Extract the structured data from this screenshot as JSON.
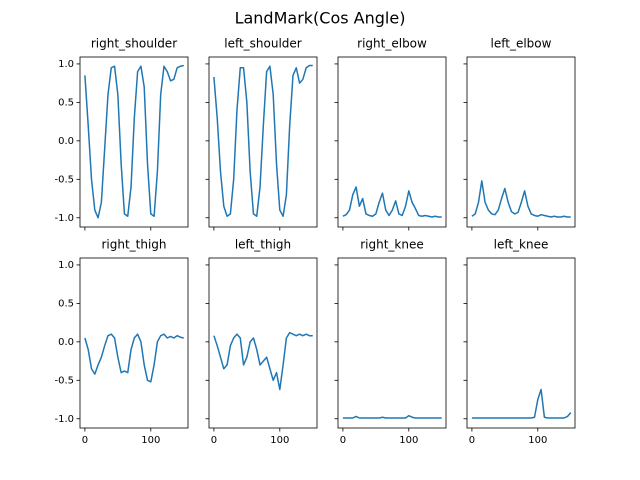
{
  "title": "LandMark(Cos Angle)",
  "chart_data": [
    {
      "type": "line",
      "title": "right_shoulder",
      "color": "#1f77b4",
      "xlim": [
        -7.45,
        156.45
      ],
      "ylim": [
        -1.12,
        1.09
      ],
      "yticks": [
        {
          "value": -1,
          "label": "-1.0"
        },
        {
          "value": -0.5,
          "label": "-0.5"
        },
        {
          "value": 0,
          "label": "0.0"
        },
        {
          "value": 0.5,
          "label": "0.5"
        },
        {
          "value": 1,
          "label": "1.0"
        }
      ],
      "x": [
        0,
        5,
        10,
        15,
        20,
        25,
        30,
        35,
        40,
        45,
        50,
        55,
        60,
        65,
        70,
        75,
        80,
        85,
        90,
        95,
        100,
        105,
        110,
        115,
        120,
        125,
        130,
        135,
        140,
        145,
        150
      ],
      "values": [
        0.85,
        0.2,
        -0.5,
        -0.9,
        -1.0,
        -0.8,
        -0.1,
        0.6,
        0.95,
        0.97,
        0.6,
        -0.3,
        -0.95,
        -0.98,
        -0.6,
        0.3,
        0.9,
        0.97,
        0.7,
        -0.3,
        -0.95,
        -0.98,
        -0.4,
        0.6,
        0.97,
        0.9,
        0.78,
        0.8,
        0.95,
        0.97,
        0.98
      ]
    },
    {
      "type": "line",
      "title": "left_shoulder",
      "color": "#1f77b4",
      "xlim": [
        -7.45,
        156.45
      ],
      "ylim": [
        -1.12,
        1.09
      ],
      "x": [
        0,
        5,
        10,
        15,
        20,
        25,
        30,
        35,
        40,
        45,
        50,
        55,
        60,
        65,
        70,
        75,
        80,
        85,
        90,
        95,
        100,
        105,
        110,
        115,
        120,
        125,
        130,
        135,
        140,
        145,
        150
      ],
      "values": [
        0.83,
        0.3,
        -0.4,
        -0.85,
        -0.98,
        -0.95,
        -0.5,
        0.4,
        0.95,
        0.95,
        0.5,
        -0.4,
        -0.95,
        -0.98,
        -0.6,
        0.2,
        0.9,
        0.97,
        0.6,
        -0.3,
        -0.9,
        -0.98,
        -0.7,
        0.2,
        0.85,
        0.95,
        0.75,
        0.8,
        0.95,
        0.98,
        0.98
      ]
    },
    {
      "type": "line",
      "title": "right_elbow",
      "color": "#1f77b4",
      "xlim": [
        -7.45,
        156.45
      ],
      "ylim": [
        -1.12,
        1.09
      ],
      "x": [
        0,
        5,
        10,
        15,
        20,
        25,
        30,
        35,
        40,
        45,
        50,
        55,
        60,
        65,
        70,
        75,
        80,
        85,
        90,
        95,
        100,
        105,
        110,
        115,
        120,
        125,
        130,
        135,
        140,
        145,
        150
      ],
      "values": [
        -0.98,
        -0.96,
        -0.9,
        -0.7,
        -0.6,
        -0.85,
        -0.75,
        -0.95,
        -0.97,
        -0.98,
        -0.95,
        -0.8,
        -0.68,
        -0.9,
        -0.97,
        -0.9,
        -0.78,
        -0.95,
        -0.97,
        -0.85,
        -0.65,
        -0.8,
        -0.88,
        -0.97,
        -0.98,
        -0.97,
        -0.98,
        -0.99,
        -0.98,
        -0.99,
        -0.99
      ]
    },
    {
      "type": "line",
      "title": "left_elbow",
      "color": "#1f77b4",
      "xlim": [
        -7.45,
        156.45
      ],
      "ylim": [
        -1.12,
        1.09
      ],
      "x": [
        0,
        5,
        10,
        15,
        20,
        25,
        30,
        35,
        40,
        45,
        50,
        55,
        60,
        65,
        70,
        75,
        80,
        85,
        90,
        95,
        100,
        105,
        110,
        115,
        120,
        125,
        130,
        135,
        140,
        145,
        150
      ],
      "values": [
        -0.98,
        -0.95,
        -0.8,
        -0.52,
        -0.8,
        -0.9,
        -0.95,
        -0.96,
        -0.9,
        -0.75,
        -0.62,
        -0.8,
        -0.92,
        -0.95,
        -0.93,
        -0.8,
        -0.65,
        -0.85,
        -0.95,
        -0.97,
        -0.98,
        -0.96,
        -0.97,
        -0.98,
        -0.99,
        -0.98,
        -0.99,
        -0.99,
        -0.98,
        -0.99,
        -0.99
      ]
    },
    {
      "type": "line",
      "title": "right_thigh",
      "color": "#1f77b4",
      "xlim": [
        -7.45,
        156.45
      ],
      "ylim": [
        -1.12,
        1.09
      ],
      "xticks": [
        0,
        100
      ],
      "yticks": [
        {
          "value": -1,
          "label": "-1.0"
        },
        {
          "value": -0.5,
          "label": "-0.5"
        },
        {
          "value": 0,
          "label": "0.0"
        },
        {
          "value": 0.5,
          "label": "0.5"
        },
        {
          "value": 1,
          "label": "1.0"
        }
      ],
      "x": [
        0,
        5,
        10,
        15,
        20,
        25,
        30,
        35,
        40,
        45,
        50,
        55,
        60,
        65,
        70,
        75,
        80,
        85,
        90,
        95,
        100,
        105,
        110,
        115,
        120,
        125,
        130,
        135,
        140,
        145,
        150
      ],
      "values": [
        0.05,
        -0.1,
        -0.35,
        -0.42,
        -0.3,
        -0.2,
        -0.05,
        0.08,
        0.1,
        0.05,
        -0.2,
        -0.4,
        -0.38,
        -0.4,
        -0.1,
        0.05,
        0.1,
        0.0,
        -0.3,
        -0.5,
        -0.52,
        -0.3,
        0.0,
        0.08,
        0.1,
        0.05,
        0.07,
        0.05,
        0.08,
        0.06,
        0.05
      ]
    },
    {
      "type": "line",
      "title": "left_thigh",
      "color": "#1f77b4",
      "xlim": [
        -7.45,
        156.45
      ],
      "ylim": [
        -1.12,
        1.09
      ],
      "xticks": [
        0,
        100
      ],
      "x": [
        0,
        5,
        10,
        15,
        20,
        25,
        30,
        35,
        40,
        45,
        50,
        55,
        60,
        65,
        70,
        75,
        80,
        85,
        90,
        95,
        100,
        105,
        110,
        115,
        120,
        125,
        130,
        135,
        140,
        145,
        150
      ],
      "values": [
        0.08,
        -0.05,
        -0.2,
        -0.35,
        -0.3,
        -0.05,
        0.05,
        0.1,
        0.05,
        -0.3,
        -0.2,
        0.0,
        0.05,
        -0.1,
        -0.3,
        -0.25,
        -0.2,
        -0.35,
        -0.5,
        -0.4,
        -0.62,
        -0.3,
        0.05,
        0.12,
        0.1,
        0.08,
        0.1,
        0.08,
        0.1,
        0.08,
        0.08
      ]
    },
    {
      "type": "line",
      "title": "right_knee",
      "color": "#1f77b4",
      "xlim": [
        -7.45,
        156.45
      ],
      "ylim": [
        -1.12,
        1.09
      ],
      "xticks": [
        0,
        100
      ],
      "x": [
        0,
        5,
        10,
        15,
        20,
        25,
        30,
        35,
        40,
        45,
        50,
        55,
        60,
        65,
        70,
        75,
        80,
        85,
        90,
        95,
        100,
        105,
        110,
        115,
        120,
        125,
        130,
        135,
        140,
        145,
        150
      ],
      "values": [
        -0.99,
        -0.99,
        -0.99,
        -0.99,
        -0.97,
        -0.99,
        -0.99,
        -0.99,
        -0.99,
        -0.99,
        -0.99,
        -0.99,
        -0.98,
        -0.99,
        -0.99,
        -0.99,
        -0.99,
        -0.99,
        -0.99,
        -0.99,
        -0.96,
        -0.98,
        -0.99,
        -0.99,
        -0.99,
        -0.99,
        -0.99,
        -0.99,
        -0.99,
        -0.99,
        -0.99
      ]
    },
    {
      "type": "line",
      "title": "left_knee",
      "color": "#1f77b4",
      "xlim": [
        -7.45,
        156.45
      ],
      "ylim": [
        -1.12,
        1.09
      ],
      "xticks": [
        0,
        100
      ],
      "x": [
        0,
        5,
        10,
        15,
        20,
        25,
        30,
        35,
        40,
        45,
        50,
        55,
        60,
        65,
        70,
        75,
        80,
        85,
        90,
        95,
        100,
        105,
        110,
        115,
        120,
        125,
        130,
        135,
        140,
        145,
        150
      ],
      "values": [
        -0.99,
        -0.99,
        -0.99,
        -0.99,
        -0.99,
        -0.99,
        -0.99,
        -0.99,
        -0.99,
        -0.99,
        -0.99,
        -0.99,
        -0.99,
        -0.99,
        -0.99,
        -0.99,
        -0.99,
        -0.99,
        -0.99,
        -0.98,
        -0.75,
        -0.62,
        -0.98,
        -0.99,
        -0.99,
        -0.99,
        -0.99,
        -0.99,
        -0.99,
        -0.97,
        -0.92
      ]
    }
  ]
}
